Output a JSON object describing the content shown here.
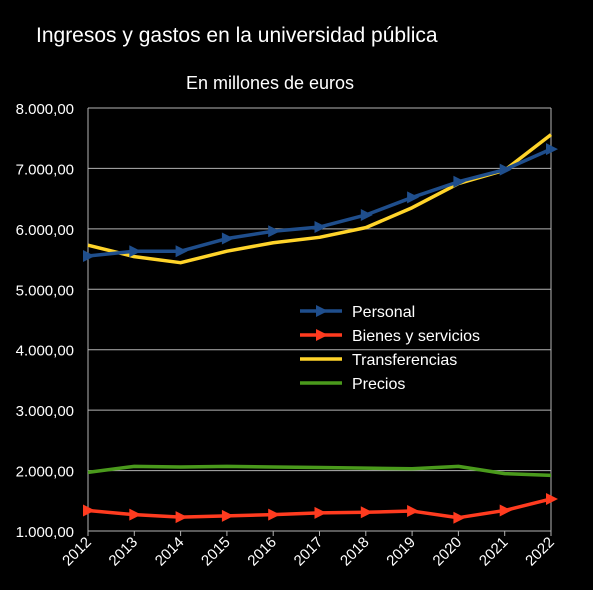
{
  "chart_data": {
    "type": "line",
    "title": "Ingresos y gastos en la universidad pública",
    "subtitle": "En millones de euros",
    "categories": [
      "2012",
      "2013",
      "2014",
      "2015",
      "2016",
      "2017",
      "2018",
      "2019",
      "2020",
      "2021",
      "2022"
    ],
    "y_ticks": [
      "1.000,00",
      "2.000,00",
      "3.000,00",
      "4.000,00",
      "5.000,00",
      "6.000,00",
      "7.000,00",
      "8.000,00"
    ],
    "ylim": [
      1000,
      8000
    ],
    "grid": true,
    "legend_position": "center-right",
    "series": [
      {
        "name": "Personal",
        "color": "#1f4e8c",
        "marker": "triangle-right",
        "values": [
          5550,
          5630,
          5630,
          5840,
          5960,
          6030,
          6230,
          6520,
          6780,
          6980,
          7320
        ]
      },
      {
        "name": "Bienes y servicios",
        "color": "#ff3b1f",
        "marker": "triangle-right",
        "values": [
          1340,
          1270,
          1230,
          1250,
          1270,
          1300,
          1310,
          1330,
          1220,
          1340,
          1530
        ]
      },
      {
        "name": "Transferencias",
        "color": "#ffd42a",
        "marker": "none",
        "values": [
          5730,
          5540,
          5440,
          5630,
          5770,
          5860,
          6020,
          6350,
          6750,
          6970,
          7560
        ]
      },
      {
        "name": "Precios",
        "color": "#4a9a1c",
        "marker": "none",
        "values": [
          1970,
          2070,
          2060,
          2070,
          2060,
          2050,
          2040,
          2030,
          2070,
          1950,
          1920
        ]
      }
    ]
  }
}
